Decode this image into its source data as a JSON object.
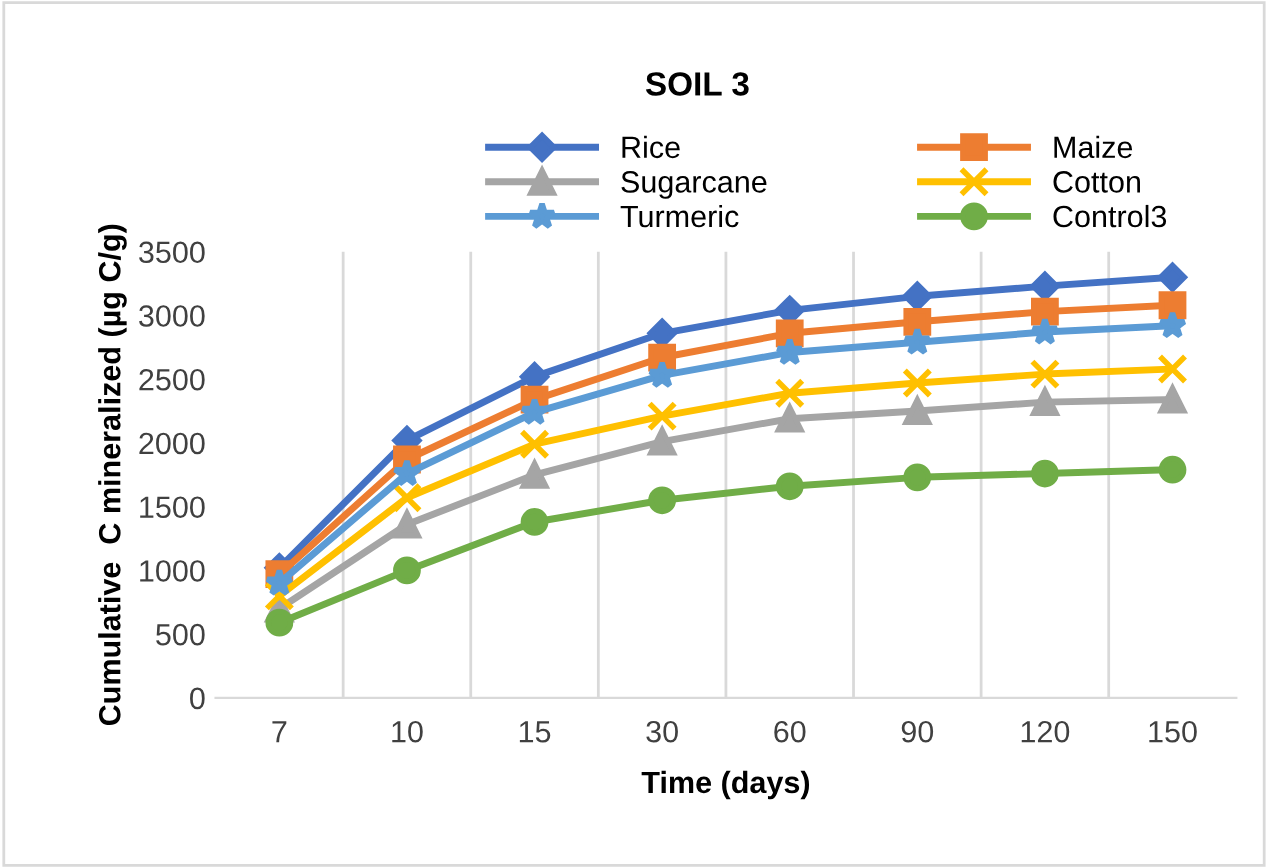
{
  "chart_data": {
    "type": "line",
    "title": "SOIL 3",
    "xlabel": "Time (days)",
    "ylabel": "Cumulative  C mineralized (µg C/g)",
    "categories": [
      "7",
      "10",
      "15",
      "30",
      "60",
      "90",
      "120",
      "150"
    ],
    "series": [
      {
        "name": "Rice",
        "color": "#4472c4",
        "marker": "diamond",
        "values": [
          1020,
          2020,
          2520,
          2860,
          3040,
          3150,
          3230,
          3300
        ]
      },
      {
        "name": "Maize",
        "color": "#ed7d31",
        "marker": "square",
        "values": [
          970,
          1870,
          2340,
          2670,
          2860,
          2950,
          3030,
          3080
        ]
      },
      {
        "name": "Sugarcane",
        "color": "#a5a5a5",
        "marker": "triangle",
        "values": [
          700,
          1360,
          1750,
          2010,
          2190,
          2250,
          2320,
          2340
        ]
      },
      {
        "name": "Cotton",
        "color": "#ffc000",
        "marker": "cross",
        "values": [
          800,
          1570,
          1990,
          2210,
          2390,
          2470,
          2540,
          2580
        ]
      },
      {
        "name": "Turmeric",
        "color": "#5b9bd5",
        "marker": "star",
        "values": [
          900,
          1760,
          2240,
          2530,
          2710,
          2790,
          2870,
          2920
        ]
      },
      {
        "name": "Control3",
        "color": "#70ad47",
        "marker": "circle",
        "values": [
          590,
          1000,
          1380,
          1550,
          1660,
          1730,
          1760,
          1790
        ]
      }
    ],
    "ylim": [
      0,
      3500
    ],
    "yticks": [
      0,
      500,
      1000,
      1500,
      2000,
      2500,
      3000,
      3500
    ],
    "grid": "x",
    "legend": "top",
    "line_style": "solid"
  }
}
